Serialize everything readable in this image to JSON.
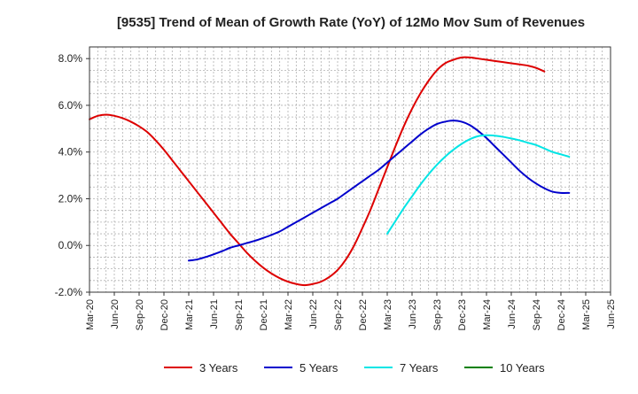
{
  "chart_data": {
    "type": "line",
    "title": "[9535]  Trend of Mean of Growth Rate (YoY) of 12Mo Mov Sum of Revenues",
    "xlabel": "",
    "ylabel": "",
    "ylim": [
      -2.0,
      8.5
    ],
    "ytick_values": [
      -2.0,
      0.0,
      2.0,
      4.0,
      6.0,
      8.0
    ],
    "ytick_labels": [
      "-2.0%",
      "0.0%",
      "2.0%",
      "4.0%",
      "6.0%",
      "8.0%"
    ],
    "x_start": "Mar-20",
    "x_months": 63,
    "xtick_labels": [
      "Mar-20",
      "Jun-20",
      "Sep-20",
      "Dec-20",
      "Mar-21",
      "Jun-21",
      "Sep-21",
      "Dec-21",
      "Mar-22",
      "Jun-22",
      "Sep-22",
      "Dec-22",
      "Mar-23",
      "Jun-23",
      "Sep-23",
      "Dec-23",
      "Mar-24",
      "Jun-24",
      "Sep-24",
      "Dec-24",
      "Mar-25",
      "Jun-25"
    ],
    "grid": true,
    "legend_position": "bottom",
    "series": [
      {
        "name": "3 Years",
        "color": "#dd0000",
        "start_index": 0,
        "values": [
          5.4,
          5.55,
          5.6,
          5.55,
          5.45,
          5.3,
          5.1,
          4.85,
          4.5,
          4.1,
          3.65,
          3.2,
          2.75,
          2.3,
          1.85,
          1.4,
          0.95,
          0.5,
          0.1,
          -0.3,
          -0.65,
          -0.95,
          -1.2,
          -1.4,
          -1.55,
          -1.65,
          -1.7,
          -1.65,
          -1.55,
          -1.35,
          -1.05,
          -0.6,
          0.0,
          0.75,
          1.55,
          2.45,
          3.35,
          4.25,
          5.1,
          5.85,
          6.5,
          7.05,
          7.5,
          7.8,
          7.95,
          8.05,
          8.05,
          8.0,
          7.95,
          7.9,
          7.85,
          7.8,
          7.75,
          7.7,
          7.6,
          7.45
        ]
      },
      {
        "name": "5 Years",
        "color": "#0000cc",
        "start_index": 12,
        "values": [
          -0.65,
          -0.6,
          -0.5,
          -0.38,
          -0.25,
          -0.1,
          0.0,
          0.1,
          0.2,
          0.32,
          0.45,
          0.6,
          0.8,
          1.0,
          1.2,
          1.4,
          1.6,
          1.8,
          2.0,
          2.25,
          2.5,
          2.75,
          3.0,
          3.25,
          3.55,
          3.85,
          4.15,
          4.45,
          4.75,
          5.0,
          5.2,
          5.3,
          5.35,
          5.3,
          5.15,
          4.9,
          4.6,
          4.25,
          3.9,
          3.55,
          3.2,
          2.9,
          2.65,
          2.45,
          2.3,
          2.25,
          2.25
        ]
      },
      {
        "name": "7 Years",
        "color": "#00e5e5",
        "start_index": 36,
        "values": [
          0.5,
          1.05,
          1.6,
          2.1,
          2.6,
          3.05,
          3.45,
          3.8,
          4.1,
          4.35,
          4.55,
          4.68,
          4.72,
          4.7,
          4.65,
          4.58,
          4.5,
          4.4,
          4.3,
          4.15,
          4.0,
          3.9,
          3.8
        ]
      },
      {
        "name": "10 Years",
        "color": "#008000",
        "start_index": 0,
        "values": []
      }
    ]
  }
}
